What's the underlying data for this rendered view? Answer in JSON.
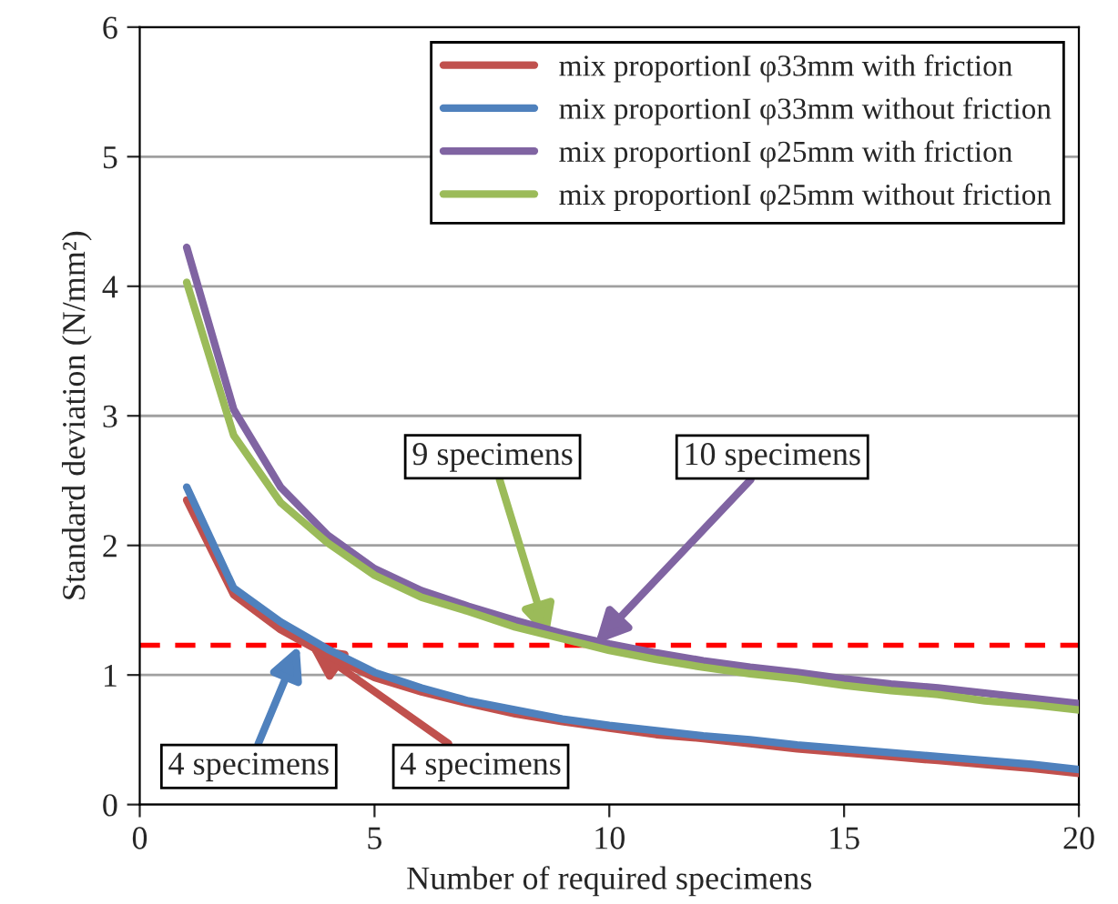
{
  "chart_data": {
    "type": "line",
    "xlabel": "Number of required specimens",
    "ylabel": "Standard deviation (N/mm²)",
    "x": [
      1,
      2,
      3,
      4,
      5,
      6,
      7,
      8,
      9,
      10,
      11,
      12,
      13,
      14,
      15,
      16,
      17,
      18,
      19,
      20
    ],
    "series": [
      {
        "name": "mix proportionI φ33mm with friction",
        "color": "#c0504d",
        "values": [
          2.35,
          1.62,
          1.35,
          1.15,
          0.98,
          0.87,
          0.78,
          0.7,
          0.64,
          0.59,
          0.54,
          0.51,
          0.47,
          0.43,
          0.4,
          0.37,
          0.34,
          0.31,
          0.28,
          0.24
        ]
      },
      {
        "name": "mix proportionI φ33mm without friction",
        "color": "#4f81bd",
        "values": [
          2.45,
          1.67,
          1.41,
          1.2,
          1.02,
          0.9,
          0.8,
          0.73,
          0.66,
          0.61,
          0.57,
          0.53,
          0.5,
          0.46,
          0.43,
          0.4,
          0.37,
          0.34,
          0.31,
          0.27
        ]
      },
      {
        "name": "mix proportionI φ25mm with friction",
        "color": "#8064a2",
        "values": [
          4.3,
          3.05,
          2.45,
          2.08,
          1.82,
          1.65,
          1.53,
          1.42,
          1.32,
          1.24,
          1.17,
          1.11,
          1.06,
          1.02,
          0.97,
          0.93,
          0.9,
          0.86,
          0.82,
          0.78
        ]
      },
      {
        "name": "mix proportionI φ25mm without friction",
        "color": "#9bbb59",
        "values": [
          4.03,
          2.85,
          2.33,
          2.02,
          1.77,
          1.6,
          1.49,
          1.37,
          1.28,
          1.19,
          1.12,
          1.06,
          1.01,
          0.97,
          0.92,
          0.88,
          0.85,
          0.8,
          0.77,
          0.73
        ]
      }
    ],
    "ref_lines": [
      {
        "axis": "y",
        "value": 1.23,
        "color": "#ff0000",
        "line_style": "dashed"
      }
    ],
    "annotations": [
      {
        "text": "9 specimens",
        "x": 8.7,
        "y": 1.28
      },
      {
        "text": "10 specimens",
        "x": 9.7,
        "y": 1.24
      },
      {
        "text": "4 specimens",
        "x": 3.4,
        "y": 1.23
      },
      {
        "text": "4 specimens",
        "x": 3.6,
        "y": 1.23
      }
    ],
    "xlim": [
      0,
      20
    ],
    "xticks": [
      0,
      5,
      10,
      15,
      20
    ],
    "ylim": [
      0,
      6
    ],
    "yticks": [
      0,
      1,
      2,
      3,
      4,
      5,
      6
    ],
    "grid": "y",
    "legend": "top right",
    "marker": "none",
    "line_style": "solid"
  }
}
